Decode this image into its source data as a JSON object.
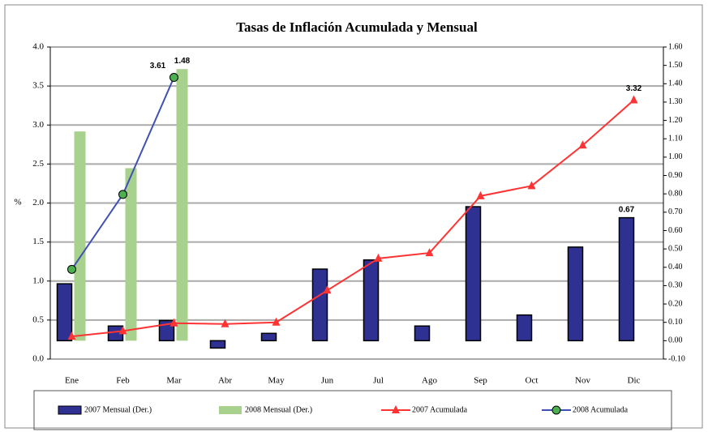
{
  "chart_data": {
    "type": "bar-line",
    "title": "Tasas de Inflación Acumulada y Mensual",
    "y_label": "%",
    "categories": [
      "Ene",
      "Feb",
      "Mar",
      "Abr",
      "May",
      "Jun",
      "Jul",
      "Ago",
      "Sep",
      "Oct",
      "Nov",
      "Dic"
    ],
    "ylim": [
      0,
      4
    ],
    "yticks": [
      {
        "value": 0,
        "label": "0.0"
      },
      {
        "value": 0.5,
        "label": "0.5"
      },
      {
        "value": 1,
        "label": "1.0"
      },
      {
        "value": 1.5,
        "label": "1.5"
      },
      {
        "value": 2,
        "label": "2.0"
      },
      {
        "value": 2.5,
        "label": "2.5"
      },
      {
        "value": 3,
        "label": "3.0"
      },
      {
        "value": 3.5,
        "label": "3.5"
      },
      {
        "value": 4,
        "label": "4.0"
      }
    ],
    "y2lim": [
      -0.1,
      1.6
    ],
    "y2ticks": [
      {
        "value": -0.1,
        "label": "-0.10"
      },
      {
        "value": 0,
        "label": "0.00"
      },
      {
        "value": 0.1,
        "label": "0.10"
      },
      {
        "value": 0.2,
        "label": "0.20"
      },
      {
        "value": 0.3,
        "label": "0.30"
      },
      {
        "value": 0.4,
        "label": "0.40"
      },
      {
        "value": 0.5,
        "label": "0.50"
      },
      {
        "value": 0.6,
        "label": "0.60"
      },
      {
        "value": 0.7,
        "label": "0.70"
      },
      {
        "value": 0.8,
        "label": "0.80"
      },
      {
        "value": 0.9,
        "label": "0.90"
      },
      {
        "value": 1,
        "label": "1.00"
      },
      {
        "value": 1.1,
        "label": "1.10"
      },
      {
        "value": 1.2,
        "label": "1.20"
      },
      {
        "value": 1.3,
        "label": "1.30"
      },
      {
        "value": 1.4,
        "label": "1.40"
      },
      {
        "value": 1.5,
        "label": "1.50"
      },
      {
        "value": 1.6,
        "label": "1.60"
      }
    ],
    "grid": true,
    "legend": "bottom",
    "series": [
      {
        "name": "2007 Mensual (Der.)",
        "kind": "bar",
        "axis": "y2",
        "color": "#2e3192",
        "values": [
          0.31,
          0.08,
          0.11,
          -0.04,
          0.04,
          0.39,
          0.44,
          0.08,
          0.73,
          0.14,
          0.51,
          0.67
        ],
        "value_labels": [
          null,
          null,
          null,
          null,
          null,
          null,
          null,
          null,
          null,
          null,
          null,
          "0.67"
        ]
      },
      {
        "name": "2008 Mensual (Der.)",
        "kind": "bar",
        "axis": "y2",
        "color": "#a9d18e",
        "values": [
          1.14,
          0.94,
          1.48,
          null,
          null,
          null,
          null,
          null,
          null,
          null,
          null,
          null
        ],
        "value_labels": [
          null,
          null,
          "1.48",
          null,
          null,
          null,
          null,
          null,
          null,
          null,
          null,
          null
        ]
      },
      {
        "name": "2007 Acumulada",
        "kind": "line",
        "axis": "y",
        "color": "#ff3333",
        "values": [
          0.29,
          0.36,
          0.46,
          0.45,
          0.47,
          0.88,
          1.29,
          1.36,
          2.09,
          2.22,
          2.74,
          3.32
        ],
        "value_labels": [
          null,
          null,
          null,
          null,
          null,
          null,
          null,
          null,
          null,
          null,
          null,
          "3.32"
        ]
      },
      {
        "name": "2008 Acumulada",
        "kind": "line",
        "axis": "y",
        "color": "#3f51b5",
        "values": [
          1.15,
          2.11,
          3.61,
          null,
          null,
          null,
          null,
          null,
          null,
          null,
          null,
          null
        ],
        "value_labels": [
          null,
          null,
          "3.61",
          null,
          null,
          null,
          null,
          null,
          null,
          null,
          null,
          null
        ]
      }
    ]
  }
}
